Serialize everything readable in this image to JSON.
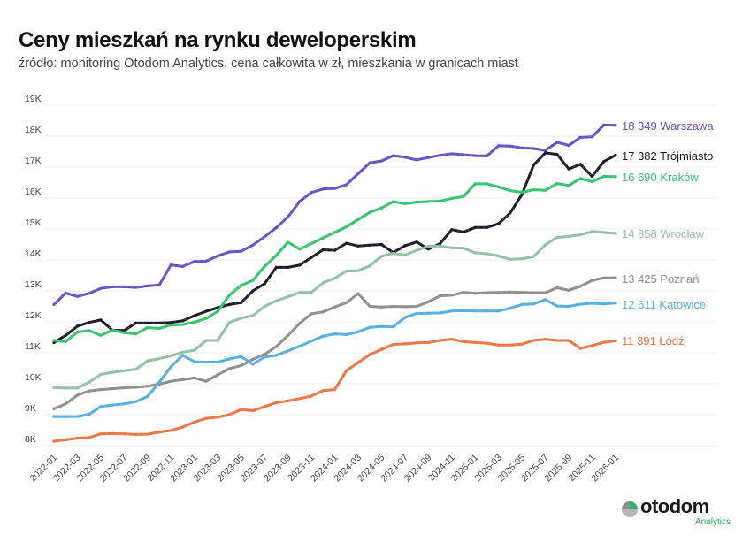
{
  "header": {
    "title": "Ceny mieszkań na rynku deweloperskim",
    "subtitle": "źródło: monitoring Otodom Analytics, cena całkowita w zł, mieszkania w granicach miast"
  },
  "logo": {
    "word": "otodom",
    "sub": "Analytics",
    "icon": "otodom-pie-icon"
  },
  "chart_data": {
    "type": "line",
    "title": "Ceny mieszkań na rynku deweloperskim",
    "xlabel": "",
    "ylabel": "",
    "ylim": [
      8000,
      19000
    ],
    "yticks": [
      8000,
      9000,
      10000,
      11000,
      12000,
      13000,
      14000,
      15000,
      16000,
      17000,
      18000,
      19000
    ],
    "ytick_labels": [
      "8K",
      "9K",
      "10K",
      "11K",
      "12K",
      "13K",
      "14K",
      "15K",
      "16K",
      "17K",
      "18K",
      "19K"
    ],
    "grid": true,
    "legend": "end-of-line labels, right",
    "x": [
      "2022-01",
      "2022-02",
      "2022-03",
      "2022-04",
      "2022-05",
      "2022-06",
      "2022-07",
      "2022-08",
      "2022-09",
      "2022-10",
      "2022-11",
      "2022-12",
      "2023-01",
      "2023-02",
      "2023-03",
      "2023-04",
      "2023-05",
      "2023-06",
      "2023-07",
      "2023-08",
      "2023-09",
      "2023-10",
      "2023-11",
      "2023-12",
      "2024-01",
      "2024-02",
      "2024-03",
      "2024-04",
      "2024-05",
      "2024-06",
      "2024-07",
      "2024-08",
      "2024-09",
      "2024-10",
      "2024-11",
      "2024-12",
      "2025-01",
      "2025-02",
      "2025-03",
      "2025-04",
      "2025-05",
      "2025-06",
      "2025-07",
      "2025-08",
      "2025-09",
      "2025-10",
      "2025-11",
      "2025-12",
      "2026-01"
    ],
    "xtick_labels": [
      "2022-01",
      "2022-03",
      "2022-05",
      "2022-07",
      "2022-09",
      "2022-11",
      "2023-01",
      "2023-03",
      "2023-05",
      "2023-07",
      "2023-09",
      "2023-11",
      "2024-01",
      "2024-03",
      "2024-05",
      "2024-07",
      "2024-09",
      "2024-11",
      "2025-01",
      "2025-03",
      "2025-05",
      "2025-07",
      "2025-09",
      "2025-11",
      "2026-01"
    ],
    "series": [
      {
        "name": "Warszawa",
        "color": "#6a4fc8",
        "last_label": "18 349",
        "values": [
          12560,
          12930,
          12820,
          12920,
          13080,
          13130,
          13130,
          13110,
          13160,
          13190,
          13840,
          13790,
          13950,
          13960,
          14130,
          14260,
          14280,
          14480,
          14750,
          15040,
          15390,
          15890,
          16180,
          16290,
          16310,
          16430,
          16790,
          17140,
          17200,
          17370,
          17320,
          17230,
          17310,
          17380,
          17430,
          17400,
          17370,
          17360,
          17690,
          17680,
          17620,
          17600,
          17540,
          17800,
          17700,
          17960,
          17980,
          18360,
          18349
        ]
      },
      {
        "name": "Trójmiasto",
        "color": "#1b1b2a",
        "last_label": "17 382",
        "values": [
          11330,
          11560,
          11860,
          11980,
          12060,
          11730,
          11720,
          11960,
          11960,
          11960,
          11980,
          12030,
          12200,
          12340,
          12460,
          12560,
          12620,
          13000,
          13230,
          13760,
          13760,
          13830,
          14080,
          14330,
          14310,
          14540,
          14450,
          14480,
          14500,
          14240,
          14460,
          14580,
          14350,
          14530,
          14980,
          14900,
          15050,
          15050,
          15170,
          15520,
          16120,
          17070,
          17460,
          17410,
          16940,
          17090,
          16700,
          17180,
          17382
        ]
      },
      {
        "name": "Kraków",
        "color": "#33c46c",
        "last_label": "16 690",
        "values": [
          11400,
          11360,
          11670,
          11720,
          11560,
          11730,
          11650,
          11610,
          11810,
          11790,
          11900,
          11910,
          11990,
          12110,
          12340,
          12860,
          13180,
          13340,
          13790,
          14150,
          14570,
          14350,
          14530,
          14710,
          14890,
          15070,
          15310,
          15540,
          15680,
          15880,
          15820,
          15870,
          15890,
          15900,
          15990,
          16050,
          16460,
          16460,
          16360,
          16240,
          16190,
          16270,
          16250,
          16470,
          16410,
          16630,
          16530,
          16700,
          16690
        ]
      },
      {
        "name": "Wrocław",
        "color": "#8fc2a4",
        "last_label": "14 858",
        "values": [
          9880,
          9860,
          9860,
          10050,
          10300,
          10370,
          10420,
          10470,
          10740,
          10810,
          10900,
          11020,
          11080,
          11400,
          11400,
          11980,
          12120,
          12200,
          12500,
          12680,
          12810,
          12950,
          12950,
          13260,
          13410,
          13640,
          13650,
          13810,
          14120,
          14210,
          14160,
          14310,
          14440,
          14450,
          14390,
          14380,
          14230,
          14200,
          14130,
          14020,
          14040,
          14110,
          14490,
          14730,
          14760,
          14810,
          14920,
          14890,
          14858
        ]
      },
      {
        "name": "Poznań",
        "color": "#8e8e90",
        "last_label": "13 425",
        "values": [
          9190,
          9350,
          9630,
          9770,
          9810,
          9840,
          9870,
          9890,
          9920,
          9990,
          10080,
          10130,
          10190,
          10080,
          10290,
          10490,
          10590,
          10790,
          10950,
          11200,
          11560,
          11950,
          12260,
          12320,
          12480,
          12620,
          12910,
          12500,
          12480,
          12500,
          12490,
          12500,
          12650,
          12840,
          12860,
          12950,
          12920,
          12940,
          12950,
          12960,
          12950,
          12940,
          12940,
          13100,
          13020,
          13150,
          13340,
          13420,
          13425
        ]
      },
      {
        "name": "Katowice",
        "color": "#55afe0",
        "last_label": "12 611",
        "values": [
          8940,
          8940,
          8940,
          9010,
          9260,
          9310,
          9350,
          9420,
          9590,
          10050,
          10550,
          10920,
          10710,
          10700,
          10700,
          10800,
          10880,
          10630,
          10860,
          10920,
          11060,
          11210,
          11380,
          11540,
          11610,
          11590,
          11680,
          11820,
          11850,
          11840,
          12140,
          12270,
          12280,
          12290,
          12350,
          12360,
          12350,
          12350,
          12350,
          12440,
          12560,
          12580,
          12720,
          12510,
          12500,
          12570,
          12600,
          12580,
          12611
        ]
      },
      {
        "name": "Łódź",
        "color": "#ee7442",
        "last_label": "11 391",
        "values": [
          8140,
          8190,
          8240,
          8260,
          8380,
          8390,
          8380,
          8360,
          8370,
          8440,
          8490,
          8600,
          8760,
          8880,
          8920,
          9000,
          9170,
          9130,
          9260,
          9390,
          9450,
          9520,
          9600,
          9780,
          9810,
          10420,
          10690,
          10940,
          11110,
          11270,
          11290,
          11320,
          11330,
          11400,
          11440,
          11360,
          11330,
          11310,
          11250,
          11250,
          11280,
          11400,
          11440,
          11400,
          11400,
          11140,
          11230,
          11340,
          11391
        ]
      }
    ]
  }
}
